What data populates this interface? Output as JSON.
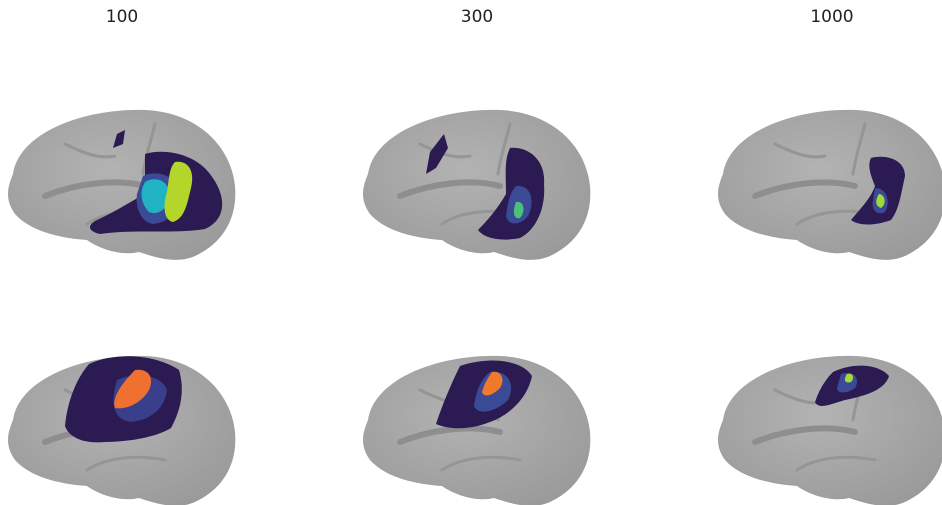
{
  "columns": [
    {
      "title": "100"
    },
    {
      "title": "300"
    },
    {
      "title": "1000"
    }
  ]
}
